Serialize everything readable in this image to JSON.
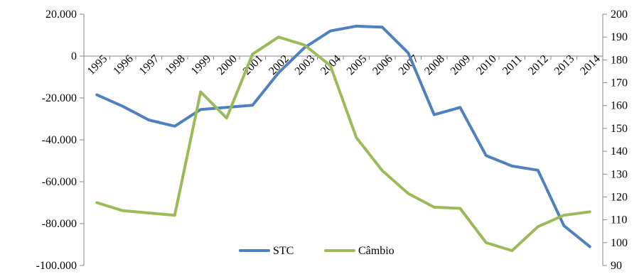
{
  "chart_data": {
    "type": "line",
    "title": "",
    "x": [
      "1995",
      "1996",
      "1997",
      "1998",
      "1999",
      "2000",
      "2001",
      "2002",
      "2003",
      "2004",
      "2005",
      "2006",
      "2007",
      "2008",
      "2009",
      "2010",
      "2011",
      "2012",
      "2013",
      "2014"
    ],
    "y_left": {
      "ylim": [
        -100000,
        20000
      ],
      "ticks": [
        20000,
        0,
        -20000,
        -40000,
        -60000,
        -80000,
        -100000
      ],
      "tick_labels": [
        "20.000",
        "0",
        "-20.000",
        "-40.000",
        "-60.000",
        "-80.000",
        "-100.000"
      ]
    },
    "y_right": {
      "ylim": [
        90,
        200
      ],
      "ticks": [
        200,
        190,
        180,
        170,
        160,
        150,
        140,
        130,
        120,
        110,
        100,
        90
      ],
      "tick_labels": [
        "200",
        "190",
        "180",
        "170",
        "160",
        "150",
        "140",
        "130",
        "120",
        "110",
        "100",
        "90"
      ]
    },
    "series": [
      {
        "name": "STC",
        "axis": "left",
        "color": "#4f81bd",
        "values": [
          -18500,
          -24000,
          -30500,
          -33500,
          -25500,
          -24500,
          -23500,
          -8000,
          4000,
          12000,
          14300,
          13800,
          1500,
          -28000,
          -24500,
          -47500,
          -52500,
          -54500,
          -81000,
          -91000
        ]
      },
      {
        "name": "Câmbio",
        "axis": "right",
        "color": "#9bbb59",
        "values": [
          117.5,
          114,
          113,
          112,
          166,
          154.5,
          182.5,
          190,
          186.5,
          177.5,
          146,
          131.5,
          121.5,
          115.5,
          115,
          100,
          96.5,
          107,
          112,
          113.5
        ]
      }
    ],
    "legend_position": "bottom-center",
    "grid": false
  }
}
